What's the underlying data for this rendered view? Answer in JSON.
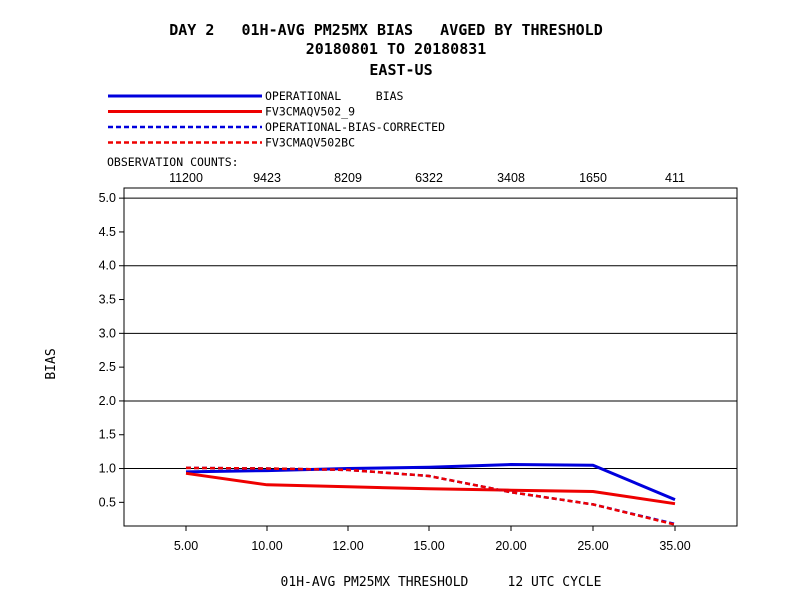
{
  "header": {
    "title_line1": "DAY 2   01H-AVG PM25MX BIAS   AVGED BY THRESHOLD",
    "title_line2": "20180801 TO 20180831",
    "title_line3": "EAST-US"
  },
  "legend": {
    "label_prefix": "OBSERVATION COUNTS:",
    "entries": [
      {
        "label": "OPERATIONAL     BIAS",
        "color": "#0000dd",
        "dash": "solid"
      },
      {
        "label": "FV3CMAQV502_9",
        "color": "#ee0000",
        "dash": "solid"
      },
      {
        "label": "OPERATIONAL-BIAS-CORRECTED",
        "color": "#0000dd",
        "dash": "dashed"
      },
      {
        "label": "FV3CMAQV502BC",
        "color": "#ee0000",
        "dash": "dashed"
      }
    ]
  },
  "chart_data": {
    "type": "line",
    "categories": [
      "5.00",
      "10.00",
      "12.00",
      "15.00",
      "20.00",
      "25.00",
      "35.00"
    ],
    "observation_counts": [
      "11200",
      "9423",
      "8209",
      "6322",
      "3408",
      "1650",
      "411"
    ],
    "xlabel": "01H-AVG PM25MX THRESHOLD     12 UTC CYCLE",
    "ylabel": "BIAS",
    "ylim": [
      0.15,
      5.15
    ],
    "yticks": [
      "5.0",
      "4.5",
      "4.0",
      "3.5",
      "3.0",
      "2.5",
      "2.0",
      "1.5",
      "1.0",
      "0.5"
    ],
    "ytick_values": [
      5.0,
      4.5,
      4.0,
      3.5,
      3.0,
      2.5,
      2.0,
      1.5,
      1.0,
      0.5
    ],
    "gridlines_at": [
      5.0,
      4.0,
      3.0,
      2.0,
      1.0
    ],
    "series": [
      {
        "name": "OPERATIONAL     BIAS",
        "color": "#0000dd",
        "dash": "solid",
        "values": [
          0.95,
          0.97,
          1.0,
          1.02,
          1.06,
          1.05,
          0.54
        ]
      },
      {
        "name": "FV3CMAQV502_9",
        "color": "#ee0000",
        "dash": "solid",
        "values": [
          0.93,
          0.76,
          0.73,
          0.7,
          0.68,
          0.66,
          0.48
        ]
      },
      {
        "name": "OPERATIONAL-BIAS-CORRECTED",
        "color": "#0000dd",
        "dash": "dashed",
        "values": [
          1.01,
          1.0,
          0.98,
          0.89,
          0.65,
          0.47,
          0.18
        ]
      },
      {
        "name": "FV3CMAQV502BC",
        "color": "#ee0000",
        "dash": "dashed",
        "values": [
          1.01,
          1.0,
          0.98,
          0.89,
          0.65,
          0.47,
          0.17
        ]
      }
    ]
  }
}
